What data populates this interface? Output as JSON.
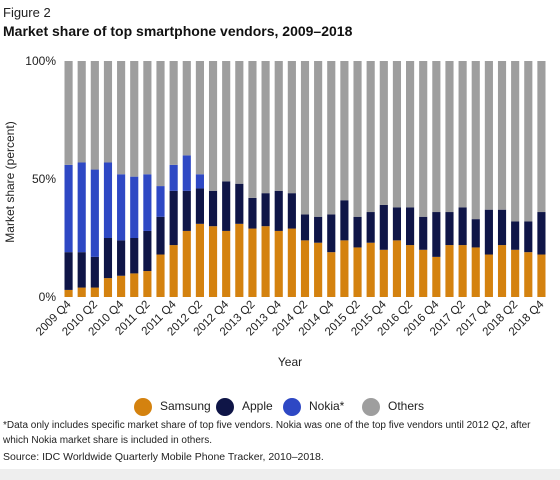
{
  "figure_label": "Figure 2",
  "chart_data": {
    "type": "bar",
    "stacked": true,
    "title": "Market share of top smartphone vendors, 2009–2018",
    "xlabel": "Year",
    "ylabel": "Market share (percent)",
    "ylim": [
      0,
      100
    ],
    "yticks": [
      "0%",
      "50%",
      "100%"
    ],
    "grid": false,
    "legend_position": "bottom",
    "categories": [
      "2009 Q4",
      "2010 Q1",
      "2010 Q2",
      "2010 Q3",
      "2010 Q4",
      "2011 Q1",
      "2011 Q2",
      "2011 Q3",
      "2011 Q4",
      "2012 Q1",
      "2012 Q2",
      "2012 Q3",
      "2012 Q4",
      "2013 Q1",
      "2013 Q2",
      "2013 Q3",
      "2013 Q4",
      "2014 Q1",
      "2014 Q2",
      "2014 Q3",
      "2014 Q4",
      "2015 Q1",
      "2015 Q2",
      "2015 Q3",
      "2015 Q4",
      "2016 Q1",
      "2016 Q2",
      "2016 Q3",
      "2016 Q4",
      "2017 Q1",
      "2017 Q2",
      "2017 Q3",
      "2017 Q4",
      "2018 Q1",
      "2018 Q2",
      "2018 Q3",
      "2018 Q4"
    ],
    "tick_labels": [
      "2009 Q4",
      "2010 Q2",
      "2010 Q4",
      "2011 Q2",
      "2011 Q4",
      "2012 Q2",
      "2012 Q4",
      "2013 Q2",
      "2013 Q4",
      "2014 Q2",
      "2014 Q4",
      "2015 Q2",
      "2015 Q4",
      "2016 Q2",
      "2016 Q4",
      "2017 Q2",
      "2017 Q4",
      "2018 Q2",
      "2018 Q4"
    ],
    "series": [
      {
        "name": "Samsung",
        "color": "#d4820f",
        "values": [
          3,
          4,
          4,
          8,
          9,
          10,
          11,
          18,
          22,
          28,
          31,
          30,
          28,
          31,
          29,
          30,
          28,
          29,
          24,
          23,
          19,
          24,
          21,
          23,
          20,
          24,
          22,
          20,
          17,
          22,
          22,
          21,
          18,
          22,
          20,
          19,
          18
        ]
      },
      {
        "name": "Apple",
        "color": "#0f1547",
        "values": [
          16,
          15,
          13,
          17,
          15,
          15,
          17,
          16,
          23,
          17,
          15,
          15,
          21,
          17,
          13,
          14,
          17,
          15,
          11,
          11,
          16,
          17,
          13,
          13,
          19,
          14,
          16,
          14,
          19,
          14,
          16,
          12,
          19,
          15,
          12,
          13,
          18
        ]
      },
      {
        "name": "Nokia*",
        "color": "#2e48c4",
        "values": [
          37,
          38,
          37,
          32,
          28,
          26,
          24,
          13,
          11,
          15,
          6,
          0,
          0,
          0,
          0,
          0,
          0,
          0,
          0,
          0,
          0,
          0,
          0,
          0,
          0,
          0,
          0,
          0,
          0,
          0,
          0,
          0,
          0,
          0,
          0,
          0,
          0
        ]
      },
      {
        "name": "Others",
        "color": "#9e9e9e",
        "values": [
          44,
          43,
          46,
          43,
          48,
          49,
          48,
          53,
          44,
          40,
          48,
          55,
          51,
          52,
          58,
          56,
          55,
          56,
          65,
          66,
          65,
          59,
          66,
          64,
          61,
          62,
          62,
          66,
          64,
          64,
          62,
          67,
          63,
          63,
          68,
          68,
          64
        ]
      }
    ]
  },
  "footnote": "*Data only includes specific market share of top five vendors. Nokia was one of the top five vendors until 2012 Q2, after which Nokia market share is included in others.",
  "source": "Source: IDC Worldwide Quarterly Mobile Phone Tracker, 2010–2018."
}
